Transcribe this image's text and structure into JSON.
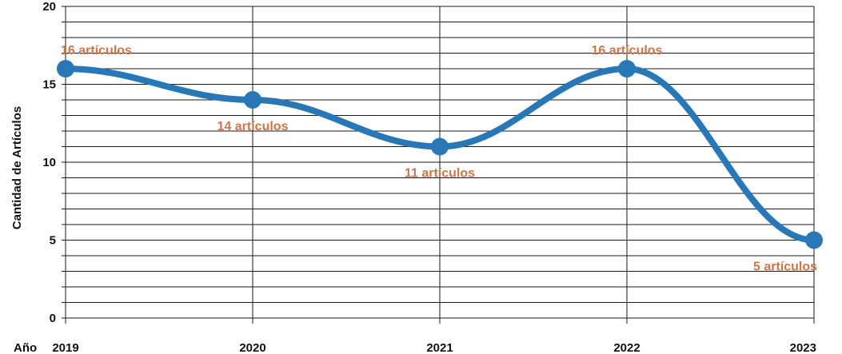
{
  "chart_data": {
    "type": "line",
    "title": "",
    "xlabel": "Año",
    "ylabel": "Cantidad de Artículos",
    "x": [
      "2019",
      "2020",
      "2021",
      "2022",
      "2023"
    ],
    "series": [
      {
        "values": [
          16,
          14,
          11,
          16,
          5
        ],
        "labels": [
          "16 artículos",
          "14 artículos",
          "11 artículos",
          "16 artículos",
          "5 artículos"
        ],
        "color": "#2878b8",
        "smooth": true
      }
    ],
    "ylim": [
      0,
      20
    ],
    "yticks": [
      "0",
      "5",
      "10",
      "15",
      "20"
    ],
    "grid": true,
    "label_color": "#d0744a"
  }
}
